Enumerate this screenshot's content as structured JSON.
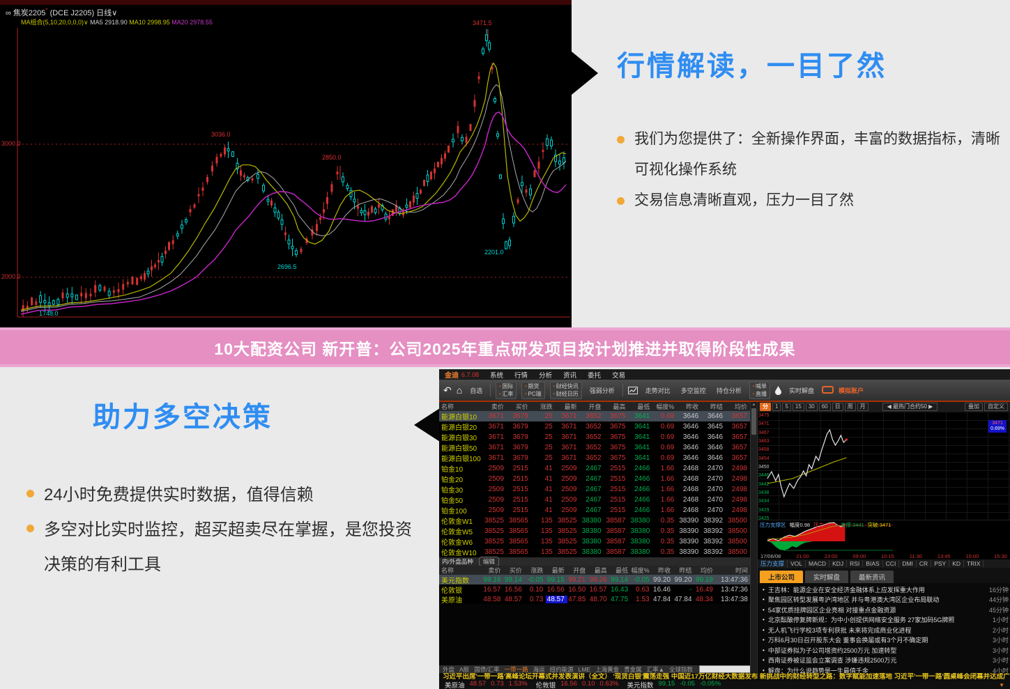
{
  "top_chart": {
    "title_prefix": "∞",
    "title_name": "焦炭2205",
    "title_mark": "*",
    "title_code": "(DCE J2205)",
    "title_period": "日线∨",
    "ma_combo": "MA组合(5,10,20,0,0,0)∨",
    "ma5": "MA5 2918.90",
    "ma10": "MA10 2998.95",
    "ma20": "MA20 2978.55",
    "y_label_3000": "3000.0",
    "y_label_2000": "2000.0",
    "anno_peak1": "3036.0",
    "anno_peak2": "2850.0",
    "anno_peak3": "3471.5",
    "anno_low1": "2696.5",
    "anno_low2": "2201.0",
    "anno_low0": "1748.0"
  },
  "top_right": {
    "heading": "行情解读，一目了然",
    "bullets": [
      "我们为您提供了：全新操作界面，丰富的数据指标，清晰可视化操作系统",
      "交易信息清晰直观，压力一目了然"
    ]
  },
  "banner": {
    "text": "10大配资公司 新开普：公司2025年重点研发项目按计划推进并取得阶段性成果"
  },
  "bottom_left": {
    "heading": "助力多空决策",
    "bullets": [
      "24小时免费提供实时数据，值得信赖",
      "多空对比实时监控，超买超卖尽在掌握，是您投资决策的有利工具"
    ]
  },
  "app": {
    "menubar": {
      "logo": "金迪",
      "version": "6.7.08",
      "items": [
        "系统",
        "行情",
        "分析",
        "资讯",
        "委托",
        "交易"
      ]
    },
    "toolbar": {
      "self_select": "自选",
      "stacks": [
        [
          "国际",
          "汇率"
        ],
        [
          "期货",
          "PC端"
        ],
        [
          "财经快讯",
          "财经日历"
        ],
        [
          "喊单",
          "直播"
        ]
      ],
      "strength": "强弱分析",
      "compare": [
        "走势对比",
        "多空监控",
        "持仓分析"
      ],
      "live": "实时解盘",
      "account": "模拟账户"
    },
    "table1": {
      "headers": [
        "名称",
        "卖价",
        "买价",
        "涨跌",
        "最新",
        "开盘",
        "最高",
        "最低",
        "幅度%",
        "昨收",
        "昨结",
        "均价"
      ],
      "rows": [
        {
          "name": "能源白银10",
          "hl": true,
          "values": [
            "3671",
            "3679",
            "25",
            "3671",
            "3652",
            "3675",
            "3641",
            "0.69",
            "3646",
            "3646",
            "3657"
          ],
          "colors": [
            "r",
            "r",
            "r",
            "r",
            "r",
            "r",
            "g",
            "r",
            "w",
            "w",
            "r"
          ]
        },
        {
          "name": "能源白银20",
          "values": [
            "3671",
            "3679",
            "25",
            "3671",
            "3652",
            "3675",
            "3641",
            "0.69",
            "3646",
            "3645",
            "3657"
          ],
          "colors": [
            "r",
            "r",
            "r",
            "r",
            "r",
            "r",
            "g",
            "r",
            "w",
            "w",
            "r"
          ]
        },
        {
          "name": "能源白银30",
          "values": [
            "3671",
            "3679",
            "25",
            "3671",
            "3652",
            "3675",
            "3641",
            "0.69",
            "3646",
            "3646",
            "3657"
          ],
          "colors": [
            "r",
            "r",
            "r",
            "r",
            "r",
            "r",
            "g",
            "r",
            "w",
            "w",
            "r"
          ]
        },
        {
          "name": "能源白银50",
          "values": [
            "3671",
            "3679",
            "25",
            "3671",
            "3652",
            "3675",
            "3641",
            "0.69",
            "3646",
            "3646",
            "3657"
          ],
          "colors": [
            "r",
            "r",
            "r",
            "r",
            "r",
            "r",
            "g",
            "r",
            "w",
            "w",
            "r"
          ]
        },
        {
          "name": "能源白银100",
          "values": [
            "3671",
            "3679",
            "25",
            "3671",
            "3652",
            "3675",
            "3641",
            "0.69",
            "3646",
            "3646",
            "3657"
          ],
          "colors": [
            "r",
            "r",
            "r",
            "r",
            "r",
            "r",
            "g",
            "r",
            "w",
            "w",
            "r"
          ]
        },
        {
          "name": "铂金10",
          "values": [
            "2509",
            "2515",
            "41",
            "2509",
            "2467",
            "2515",
            "2466",
            "1.66",
            "2468",
            "2470",
            "2498"
          ],
          "colors": [
            "r",
            "r",
            "r",
            "r",
            "g",
            "r",
            "g",
            "r",
            "w",
            "w",
            "r"
          ]
        },
        {
          "name": "铂金20",
          "values": [
            "2509",
            "2515",
            "41",
            "2509",
            "2467",
            "2515",
            "2466",
            "1.66",
            "2468",
            "2470",
            "2498"
          ],
          "colors": [
            "r",
            "r",
            "r",
            "r",
            "g",
            "r",
            "g",
            "r",
            "w",
            "w",
            "r"
          ]
        },
        {
          "name": "铂金30",
          "values": [
            "2509",
            "2515",
            "41",
            "2509",
            "2467",
            "2515",
            "2466",
            "1.66",
            "2468",
            "2470",
            "2498"
          ],
          "colors": [
            "r",
            "r",
            "r",
            "r",
            "g",
            "r",
            "g",
            "r",
            "w",
            "w",
            "r"
          ]
        },
        {
          "name": "铂金50",
          "values": [
            "2509",
            "2515",
            "41",
            "2509",
            "2467",
            "2515",
            "2466",
            "1.66",
            "2468",
            "2470",
            "2498"
          ],
          "colors": [
            "r",
            "r",
            "r",
            "r",
            "g",
            "r",
            "g",
            "r",
            "w",
            "w",
            "r"
          ]
        },
        {
          "name": "铂金100",
          "values": [
            "2509",
            "2515",
            "41",
            "2509",
            "2467",
            "2515",
            "2466",
            "1.66",
            "2468",
            "2470",
            "2498"
          ],
          "colors": [
            "r",
            "r",
            "r",
            "r",
            "g",
            "r",
            "g",
            "r",
            "w",
            "w",
            "r"
          ]
        },
        {
          "name": "伦敦金W1",
          "values": [
            "38525",
            "38565",
            "135",
            "38525",
            "38380",
            "38587",
            "38380",
            "0.35",
            "38390",
            "38392",
            "38500"
          ],
          "colors": [
            "r",
            "r",
            "r",
            "r",
            "g",
            "r",
            "g",
            "r",
            "w",
            "w",
            "r"
          ]
        },
        {
          "name": "伦敦金W5",
          "values": [
            "38525",
            "38565",
            "135",
            "38525",
            "38380",
            "38587",
            "38380",
            "0.35",
            "38390",
            "38392",
            "38500"
          ],
          "colors": [
            "r",
            "r",
            "r",
            "r",
            "g",
            "r",
            "g",
            "r",
            "w",
            "w",
            "r"
          ]
        },
        {
          "name": "伦敦金W6",
          "values": [
            "38525",
            "38565",
            "135",
            "38525",
            "38380",
            "38587",
            "38380",
            "0.35",
            "38390",
            "38392",
            "38500"
          ],
          "colors": [
            "r",
            "r",
            "r",
            "r",
            "g",
            "r",
            "g",
            "r",
            "w",
            "w",
            "r"
          ]
        },
        {
          "name": "伦敦金W10",
          "values": [
            "38525",
            "38565",
            "135",
            "38525",
            "38380",
            "38587",
            "38380",
            "0.35",
            "38390",
            "38392",
            "38500"
          ],
          "colors": [
            "r",
            "r",
            "r",
            "r",
            "g",
            "r",
            "g",
            "r",
            "w",
            "w",
            "r"
          ]
        }
      ]
    },
    "subtabs": {
      "species": "内/外盘品种",
      "edit": "编辑"
    },
    "table2": {
      "headers": [
        "名称",
        "卖价",
        "买价",
        "涨跌",
        "最新",
        "开盘",
        "最高",
        "最低",
        "幅度%",
        "昨收",
        "昨结",
        "均价",
        "时间"
      ],
      "rows": [
        {
          "name": "美元指数",
          "hl": true,
          "values": [
            "99.16",
            "99.14",
            "-0.05",
            "99.15",
            "99.21",
            "99.26",
            "99.14",
            "-0.05",
            "99.20",
            "99.20",
            "99.19"
          ],
          "colors": [
            "g",
            "g",
            "g",
            "g",
            "r",
            "r",
            "g",
            "g",
            "w",
            "w",
            "g"
          ],
          "time": "13:47:36"
        },
        {
          "name": "伦敦银",
          "values": [
            "16.57",
            "16.56",
            "0.10",
            "16.56",
            "16.50",
            "16.57",
            "16.43",
            "0.63",
            "16.46",
            "-",
            "16.49"
          ],
          "colors": [
            "r",
            "r",
            "r",
            "r",
            "r",
            "r",
            "g",
            "r",
            "w",
            "g",
            "r"
          ],
          "time": "13:47:36"
        },
        {
          "name": "美原油",
          "sel_index": 3,
          "values": [
            "48.58",
            "48.57",
            "0.73",
            "48.57",
            "47.85",
            "48.70",
            "47.75",
            "1.53",
            "47.84",
            "47.84",
            "48.34"
          ],
          "colors": [
            "r",
            "r",
            "r",
            "r",
            "r",
            "r",
            "g",
            "r",
            "w",
            "w",
            "r"
          ],
          "time": "13:47:38"
        }
      ]
    },
    "bottom_tabs": [
      "外盘",
      "A股",
      "国债/汇率",
      "一带一路",
      "海运",
      "纽约能源",
      "LME",
      "上海黄金",
      "贵金属",
      "汇率▲",
      "全球指数"
    ],
    "bottom_tabs_active": "一带一路",
    "chart_panel": {
      "periods": [
        "分",
        "1",
        "5",
        "15",
        "30",
        "60",
        "日",
        "周",
        "月"
      ],
      "selector": "◀ 最热门合约50 ▶",
      "overlay": "叠加",
      "custom": "自定义",
      "y_labels": [
        {
          "t": "3475",
          "c": "cr"
        },
        {
          "t": "3471",
          "c": "cr"
        },
        {
          "t": "3467",
          "c": "cr"
        },
        {
          "t": "3463",
          "c": "cr"
        },
        {
          "t": "3458",
          "c": "cr"
        },
        {
          "t": "3454",
          "c": "cr"
        },
        {
          "t": "3450",
          "c": "cw"
        },
        {
          "t": "3446",
          "c": "cg"
        },
        {
          "t": "3442",
          "c": "cg"
        },
        {
          "t": "3438",
          "c": "cg"
        },
        {
          "t": "3434",
          "c": "cg"
        },
        {
          "t": "3429",
          "c": "cg"
        },
        {
          "t": "3425",
          "c": "cg"
        }
      ],
      "badge_price": "3471",
      "badge_pct": "0.69%",
      "sub_label": [
        {
          "t": "压力支撑区",
          "c": "lb"
        },
        {
          "t": "幅度0.98",
          "c": "lw"
        },
        {
          "t": "压力:3471",
          "c": "lr"
        },
        {
          "t": "支撑:3441",
          "c": "lg"
        },
        {
          "t": "突破:3471",
          "c": "ly"
        }
      ],
      "x_labels": [
        {
          "t": "17/06/08",
          "c": "date"
        },
        {
          "t": "21:00"
        },
        {
          "t": "23:00"
        },
        {
          "t": "09:00"
        },
        {
          "t": "10:15"
        },
        {
          "t": "11:30"
        },
        {
          "t": "13:45"
        },
        {
          "t": "15:00"
        },
        {
          "t": "15:30"
        }
      ],
      "indicator_tabs": [
        "压力支撑",
        "VOL",
        "MACD",
        "KDJ",
        "RSI",
        "BIAS",
        "CCI",
        "DMI",
        "CR",
        "PSY",
        "KD",
        "TRIX"
      ],
      "indicator_active": "压力支撑"
    },
    "news_tabs": [
      "上市公司",
      "实时解盘",
      "最新资讯"
    ],
    "news_tabs_active": "上市公司",
    "news": [
      {
        "text": "王吉林：能源企业在安全经济金融体系上应发挥重大作用",
        "time": "16分钟"
      },
      {
        "text": "聚焦园区转型发展粤沪湾地区 并与粤港澳大湾区企业布局联动",
        "time": "44分钟"
      },
      {
        "text": "54家优质挂牌园区企业亮相 对接重点金融资源",
        "time": "45分钟"
      },
      {
        "text": "北京酝酿停复牌新规：为中小创提供网络安全服务 27家加码5G牌照",
        "time": "1小时"
      },
      {
        "text": "无人机飞行学校3项专利获批 未来将完成商业化进程",
        "time": "2小时"
      },
      {
        "text": "万科6月30日召开股东大会 董事会换届或有3个月不确定期",
        "time": "3小时"
      },
      {
        "text": "中部证券拟为子公司增资约2500万元 加速转型",
        "time": "3小时"
      },
      {
        "text": "西南证券被证监会立案调查 涉嫌违规2500万元",
        "time": "3小时"
      },
      {
        "text": "解盘：为什么说趋势是一生最值千金",
        "time": "4小时"
      }
    ],
    "ticker": "习近平出席'一带一路'高峰论坛开幕式并发表演讲（全文）  '现货白银'震荡走强 中国近17万亿财经大数据发布  新挑战中的财经转型之路：数字赋能加速落地  习近平'一带一路'圆桌峰会闭幕并达成广泛共识  专题：'一带一路'国际合作高峰论坛",
    "status": [
      {
        "name": "美原油",
        "values": [
          "48.57",
          "0.73",
          "1.53%"
        ],
        "c": "cr"
      },
      {
        "name": "伦敦银",
        "values": [
          "16.56",
          "0.10",
          "0.63%"
        ],
        "c": "cr"
      },
      {
        "name": "美元指数",
        "values": [
          "99.15",
          "-0.05",
          "-0.05%"
        ],
        "c": "cg"
      }
    ]
  }
}
